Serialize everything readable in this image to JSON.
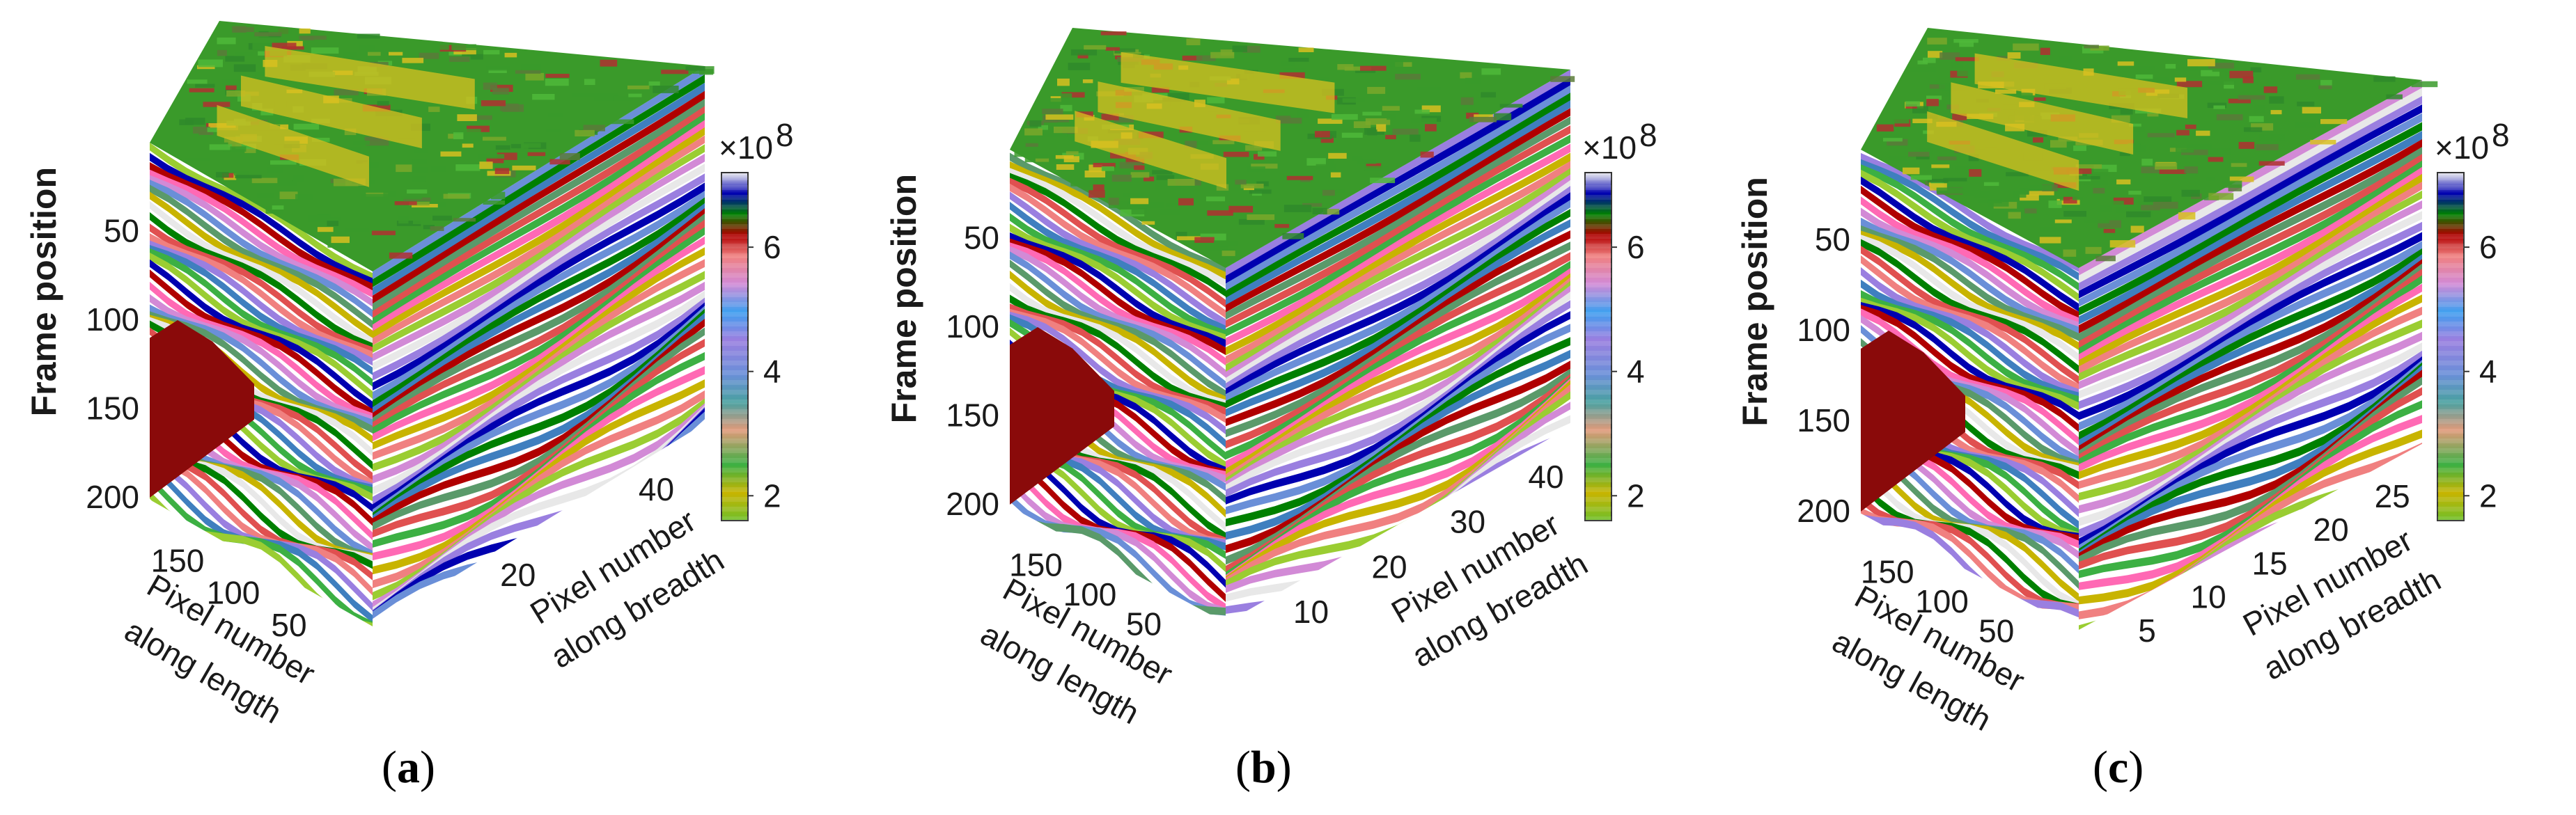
{
  "chart_data": [
    {
      "type": "heatmap",
      "panel_label": "a",
      "zlabel": "Frame position",
      "ylabel": "Pixel number along length",
      "xlabel": "Pixel number along breadth",
      "zticks": [
        "50",
        "100",
        "150",
        "200"
      ],
      "yticks": [
        "150",
        "100",
        "50"
      ],
      "xticks": [
        "20",
        "40"
      ],
      "zlim": [
        0,
        200
      ],
      "ylim": [
        0,
        200
      ],
      "xlim": [
        0,
        48
      ],
      "colorbar": {
        "ticks": [
          "2",
          "4",
          "6"
        ],
        "exponent_base": "×10",
        "exponent": "8",
        "range": [
          1.6,
          7.2
        ]
      }
    },
    {
      "type": "heatmap",
      "panel_label": "b",
      "zlabel": "Frame position",
      "ylabel": "Pixel number along length",
      "xlabel": "Pixel number along breadth",
      "zticks": [
        "50",
        "100",
        "150",
        "200"
      ],
      "yticks": [
        "150",
        "100",
        "50"
      ],
      "xticks": [
        "10",
        "20",
        "30",
        "40"
      ],
      "zlim": [
        0,
        200
      ],
      "ylim": [
        0,
        200
      ],
      "xlim": [
        0,
        44
      ],
      "colorbar": {
        "ticks": [
          "2",
          "4",
          "6"
        ],
        "exponent_base": "×10",
        "exponent": "8",
        "range": [
          1.6,
          7.2
        ]
      }
    },
    {
      "type": "heatmap",
      "panel_label": "c",
      "zlabel": "Frame position",
      "ylabel": "Pixel number along length",
      "xlabel": "Pixel number along breadth",
      "zticks": [
        "50",
        "100",
        "150",
        "200"
      ],
      "yticks": [
        "150",
        "100",
        "50"
      ],
      "xticks": [
        "5",
        "10",
        "15",
        "20",
        "25"
      ],
      "zlim": [
        0,
        200
      ],
      "ylim": [
        0,
        200
      ],
      "xlim": [
        0,
        28
      ],
      "colorbar": {
        "ticks": [
          "2",
          "4",
          "6"
        ],
        "exponent_base": "×10",
        "exponent": "8",
        "range": [
          1.6,
          7.2
        ]
      }
    }
  ],
  "captions": [
    {
      "open": "(",
      "label": "a",
      "close": ")"
    },
    {
      "open": "(",
      "label": "b",
      "close": ")"
    },
    {
      "open": "(",
      "label": "c",
      "close": ")"
    }
  ],
  "colors": {
    "colormap": [
      "#9acd32",
      "#c8b400",
      "#3cb043",
      "#5a9a6a",
      "#3f7fbf",
      "#6a8fd8",
      "#9a7fe0",
      "#d28ad6",
      "#f08080",
      "#ff69b4",
      "#e05050",
      "#b00000",
      "#008000",
      "#0000b0",
      "#e8e8e8"
    ],
    "top_green": "#3a9a2a",
    "top_yellow": "#d8c020",
    "top_red": "#b03030",
    "deep_red": "#8a0a0a"
  }
}
